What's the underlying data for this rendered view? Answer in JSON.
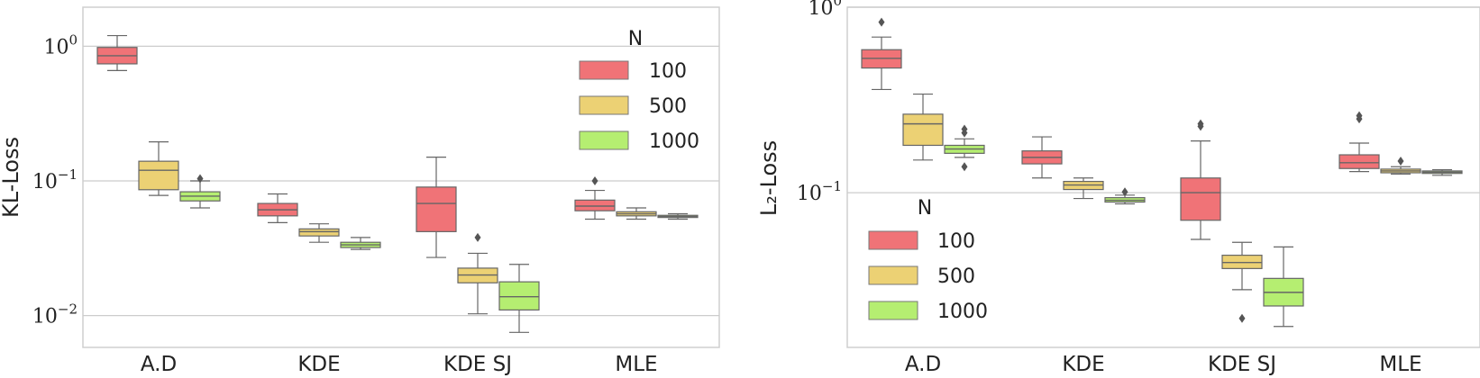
{
  "chart_data": [
    {
      "type": "box",
      "ylabel": "KL-Loss",
      "yscale": "log",
      "ylim": [
        0.0058,
        1.95
      ],
      "yticks": [
        {
          "value": 1,
          "base": "10",
          "exp": "0"
        },
        {
          "value": 0.1,
          "base": "10",
          "exp": "−1"
        },
        {
          "value": 0.01,
          "base": "10",
          "exp": "−2"
        }
      ],
      "categories": [
        "A.D",
        "KDE",
        "KDE SJ",
        "MLE"
      ],
      "legend": {
        "title": "N",
        "position": "upper-right",
        "entries": [
          "100",
          "500",
          "1000"
        ]
      },
      "series": [
        {
          "name": "100",
          "color": "#f07377",
          "boxes": [
            {
              "whislo": 0.66,
              "q1": 0.74,
              "med": 0.85,
              "q3": 0.98,
              "whishi": 1.2,
              "fliers": []
            },
            {
              "whislo": 0.049,
              "q1": 0.055,
              "med": 0.061,
              "q3": 0.068,
              "whishi": 0.08,
              "fliers": []
            },
            {
              "whislo": 0.027,
              "q1": 0.042,
              "med": 0.068,
              "q3": 0.09,
              "whishi": 0.15,
              "fliers": []
            },
            {
              "whislo": 0.052,
              "q1": 0.06,
              "med": 0.065,
              "q3": 0.072,
              "whishi": 0.085,
              "fliers": [
                0.1
              ]
            }
          ]
        },
        {
          "name": "500",
          "color": "#ecd174",
          "boxes": [
            {
              "whislo": 0.078,
              "q1": 0.086,
              "med": 0.12,
              "q3": 0.14,
              "whishi": 0.195,
              "fliers": []
            },
            {
              "whislo": 0.035,
              "q1": 0.039,
              "med": 0.042,
              "q3": 0.044,
              "whishi": 0.048,
              "fliers": []
            },
            {
              "whislo": 0.0103,
              "q1": 0.0175,
              "med": 0.02,
              "q3": 0.0225,
              "whishi": 0.029,
              "fliers": [
                0.038
              ]
            },
            {
              "whislo": 0.052,
              "q1": 0.055,
              "med": 0.057,
              "q3": 0.059,
              "whishi": 0.063,
              "fliers": []
            }
          ]
        },
        {
          "name": "1000",
          "color": "#b5ee71",
          "boxes": [
            {
              "whislo": 0.063,
              "q1": 0.071,
              "med": 0.077,
              "q3": 0.083,
              "whishi": 0.1,
              "fliers": [
                0.104
              ]
            },
            {
              "whislo": 0.031,
              "q1": 0.032,
              "med": 0.0335,
              "q3": 0.035,
              "whishi": 0.038,
              "fliers": []
            },
            {
              "whislo": 0.0075,
              "q1": 0.011,
              "med": 0.0138,
              "q3": 0.0178,
              "whishi": 0.024,
              "fliers": []
            },
            {
              "whislo": 0.052,
              "q1": 0.0535,
              "med": 0.0545,
              "q3": 0.0555,
              "whishi": 0.057,
              "fliers": []
            }
          ]
        }
      ]
    },
    {
      "type": "box",
      "ylabel": "L₂-Loss",
      "yscale": "log",
      "ylim": [
        0.01465,
        1.0
      ],
      "yticks": [
        {
          "value": 1,
          "base": "10",
          "exp": "0"
        },
        {
          "value": 0.1,
          "base": "10",
          "exp": "−1"
        }
      ],
      "categories": [
        "A.D",
        "KDE",
        "KDE SJ",
        "MLE"
      ],
      "legend": {
        "title": "N",
        "position": "lower-left",
        "entries": [
          "100",
          "500",
          "1000"
        ]
      },
      "series": [
        {
          "name": "100",
          "color": "#f07377",
          "boxes": [
            {
              "whislo": 0.36,
              "q1": 0.47,
              "med": 0.53,
              "q3": 0.59,
              "whishi": 0.69,
              "fliers": [
                0.83
              ]
            },
            {
              "whislo": 0.12,
              "q1": 0.143,
              "med": 0.155,
              "q3": 0.168,
              "whishi": 0.2,
              "fliers": []
            },
            {
              "whislo": 0.056,
              "q1": 0.071,
              "med": 0.1,
              "q3": 0.12,
              "whishi": 0.19,
              "fliers": [
                0.235,
                0.228
              ]
            },
            {
              "whislo": 0.13,
              "q1": 0.135,
              "med": 0.145,
              "q3": 0.16,
              "whishi": 0.185,
              "fliers": [
                0.26,
                0.25
              ]
            }
          ]
        },
        {
          "name": "500",
          "color": "#ecd174",
          "boxes": [
            {
              "whislo": 0.15,
              "q1": 0.18,
              "med": 0.235,
              "q3": 0.265,
              "whishi": 0.34,
              "fliers": []
            },
            {
              "whislo": 0.093,
              "q1": 0.104,
              "med": 0.11,
              "q3": 0.115,
              "whishi": 0.12,
              "fliers": []
            },
            {
              "whislo": 0.03,
              "q1": 0.039,
              "med": 0.042,
              "q3": 0.046,
              "whishi": 0.054,
              "fliers": [
                0.021
              ]
            },
            {
              "whislo": 0.126,
              "q1": 0.128,
              "med": 0.131,
              "q3": 0.134,
              "whishi": 0.138,
              "fliers": [
                0.148
              ]
            }
          ]
        },
        {
          "name": "1000",
          "color": "#b5ee71",
          "boxes": [
            {
              "whislo": 0.155,
              "q1": 0.163,
              "med": 0.172,
              "q3": 0.18,
              "whishi": 0.195,
              "fliers": [
                0.21,
                0.22,
                0.138
              ]
            },
            {
              "whislo": 0.087,
              "q1": 0.089,
              "med": 0.091,
              "q3": 0.094,
              "whishi": 0.097,
              "fliers": [
                0.101
              ]
            },
            {
              "whislo": 0.019,
              "q1": 0.0245,
              "med": 0.029,
              "q3": 0.0345,
              "whishi": 0.051,
              "fliers": []
            },
            {
              "whislo": 0.124,
              "q1": 0.127,
              "med": 0.129,
              "q3": 0.131,
              "whishi": 0.133,
              "fliers": []
            }
          ]
        }
      ]
    }
  ]
}
